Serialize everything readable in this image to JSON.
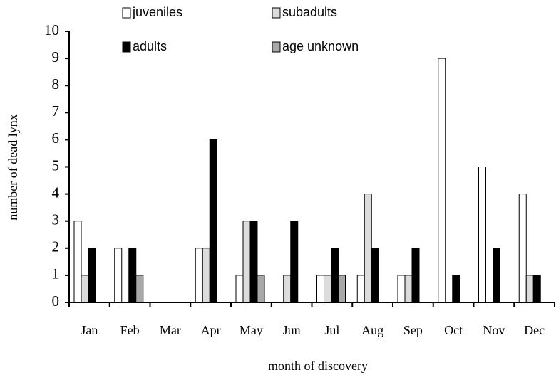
{
  "chart_data": {
    "type": "bar",
    "xlabel": "month of discovery",
    "ylabel": "number of dead lynx",
    "categories": [
      "Jan",
      "Feb",
      "Mar",
      "Apr",
      "May",
      "Jun",
      "Jul",
      "Aug",
      "Sep",
      "Oct",
      "Nov",
      "Dec"
    ],
    "series": [
      {
        "name": "juveniles",
        "color": "#ffffff",
        "values": [
          3,
          2,
          0,
          2,
          1,
          0,
          1,
          1,
          1,
          9,
          5,
          4
        ]
      },
      {
        "name": "subadults",
        "color": "#dcdcdc",
        "values": [
          1,
          0,
          0,
          2,
          3,
          1,
          1,
          4,
          1,
          0,
          0,
          1
        ]
      },
      {
        "name": "adults",
        "color": "#000000",
        "values": [
          2,
          2,
          0,
          6,
          3,
          3,
          2,
          2,
          2,
          1,
          2,
          1
        ]
      },
      {
        "name": "age unknown",
        "color": "#a8a8a8",
        "values": [
          0,
          1,
          0,
          0,
          1,
          0,
          1,
          0,
          0,
          0,
          0,
          0
        ]
      }
    ],
    "ylim": [
      0,
      10
    ],
    "yticks": [
      0,
      1,
      2,
      3,
      4,
      5,
      6,
      7,
      8,
      9,
      10
    ],
    "grid": false
  }
}
